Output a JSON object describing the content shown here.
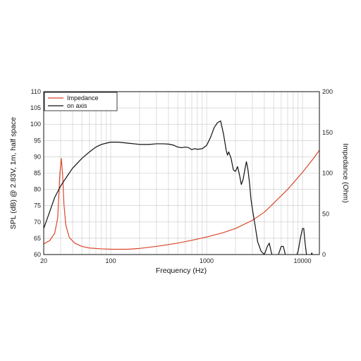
{
  "chart_data": {
    "type": "line",
    "xlabel": "Frequency (Hz)",
    "ylabel_left": "SPL (dB) @ 2.83V, 1m, half space",
    "ylabel_right": "Impedance (Ohm)",
    "x_scale": "log",
    "xlim": [
      20,
      15000
    ],
    "ylim_left": [
      60,
      110
    ],
    "ylim_right": [
      0,
      200
    ],
    "x_ticks": [
      20,
      100,
      1000,
      10000
    ],
    "x_tick_labels": [
      "20",
      "100",
      "1000",
      "10000"
    ],
    "y_left_ticks": [
      60,
      65,
      70,
      75,
      80,
      85,
      90,
      95,
      100,
      105,
      110
    ],
    "y_right_ticks": [
      0,
      50,
      100,
      150,
      200
    ],
    "grid": true,
    "legend_position": "top-left",
    "colors": {
      "impedance": "#d9472b",
      "on_axis": "#111111"
    },
    "series": [
      {
        "name": "Impedance",
        "axis": "right",
        "color": "#d9472b",
        "x": [
          20,
          23,
          26,
          28,
          29.5,
          30.5,
          31.5,
          32.5,
          34,
          37,
          42,
          50,
          60,
          80,
          100,
          150,
          200,
          300,
          500,
          700,
          1000,
          1500,
          2000,
          3000,
          4000,
          5000,
          7000,
          10000,
          13000,
          15000
        ],
        "y": [
          13,
          17,
          26,
          45,
          100,
          118,
          98,
          62,
          36,
          21,
          14,
          10,
          8,
          7,
          6.5,
          6.5,
          7.5,
          10,
          14,
          17.5,
          21.5,
          27,
          32,
          42,
          52,
          63,
          80,
          101,
          118,
          128
        ]
      },
      {
        "name": "on axis",
        "axis": "left",
        "color": "#111111",
        "x": [
          20,
          23,
          26,
          30,
          35,
          40,
          50,
          60,
          70,
          80,
          90,
          100,
          120,
          150,
          200,
          250,
          300,
          350,
          400,
          450,
          500,
          550,
          600,
          650,
          700,
          750,
          800,
          900,
          1000,
          1100,
          1200,
          1300,
          1400,
          1500,
          1600,
          1650,
          1700,
          1800,
          1900,
          2000,
          2100,
          2200,
          2300,
          2400,
          2500,
          2600,
          2700,
          2800,
          2900,
          3000,
          3200,
          3400,
          3700,
          4000,
          4300,
          4500,
          4700,
          4900,
          5100,
          5300,
          5600,
          6000,
          6300,
          6500,
          6700,
          7000,
          7500,
          8000,
          8500,
          9000,
          9500,
          10000,
          10300,
          10600,
          11000,
          11500,
          12000,
          12500,
          13000
        ],
        "y": [
          68,
          73,
          77.5,
          81,
          84,
          86.5,
          89.5,
          91.5,
          93,
          93.8,
          94.2,
          94.5,
          94.5,
          94.2,
          93.8,
          93.8,
          94,
          94,
          93.9,
          93.6,
          93,
          92.8,
          93,
          92.8,
          92.2,
          92.5,
          92.3,
          92.5,
          93.5,
          96,
          99,
          100.5,
          101,
          97,
          92,
          90.5,
          91.5,
          89.5,
          86,
          85.5,
          87,
          84.5,
          81.5,
          83,
          86,
          88.5,
          86,
          82,
          77,
          74,
          69,
          64,
          61,
          60,
          62.5,
          63.5,
          61,
          59,
          59,
          59,
          60,
          62.5,
          62.5,
          61,
          59,
          59,
          59,
          59,
          59,
          61,
          65,
          68,
          68,
          64,
          60,
          59,
          59,
          60.5,
          59
        ]
      }
    ]
  }
}
